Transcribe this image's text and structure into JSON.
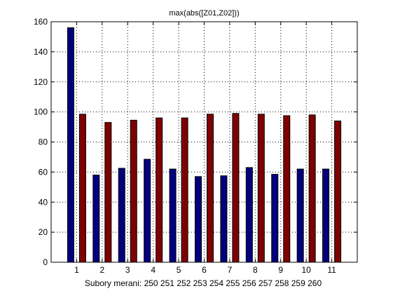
{
  "chart_data": {
    "type": "bar",
    "title": "max(abs([Z01,Z02]))",
    "xlabel": "Subory merani: 250 251 252 253 254 255 256 257 258 259 260",
    "ylabel": "",
    "categories": [
      "1",
      "2",
      "3",
      "4",
      "5",
      "6",
      "7",
      "8",
      "9",
      "10",
      "11"
    ],
    "ylim": [
      0,
      160
    ],
    "yticks": [
      0,
      20,
      40,
      60,
      80,
      100,
      120,
      140,
      160
    ],
    "grid": true,
    "series": [
      {
        "color": "#00007f",
        "values": [
          156,
          58,
          62.5,
          68.5,
          62,
          57,
          57.5,
          63,
          58.5,
          62,
          62
        ]
      },
      {
        "color": "#7f0000",
        "values": [
          98.5,
          93,
          94.5,
          96,
          96,
          98.5,
          99,
          98.5,
          97.5,
          98,
          94
        ]
      }
    ]
  }
}
